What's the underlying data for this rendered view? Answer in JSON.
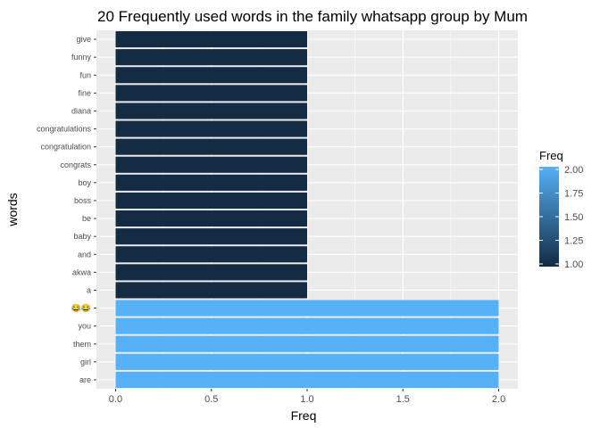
{
  "chart_data": {
    "type": "bar",
    "orientation": "horizontal",
    "title": "20 Frequently used words in the family whatsapp group by Mum",
    "xlabel": "Freq",
    "ylabel": "words",
    "categories": [
      "give",
      "funny",
      "fun",
      "fine",
      "diana",
      "congratulations",
      "congratulation",
      "congrats",
      "boy",
      "boss",
      "be",
      "baby",
      "and",
      "akwa",
      "a",
      "😂😂",
      "you",
      "them",
      "girl",
      "are"
    ],
    "values": [
      1,
      1,
      1,
      1,
      1,
      1,
      1,
      1,
      1,
      1,
      1,
      1,
      1,
      1,
      1,
      2,
      2,
      2,
      2,
      2
    ],
    "xlim": [
      0,
      2
    ],
    "xticks": [
      "0.0",
      "0.5",
      "1.0",
      "1.5",
      "2.0"
    ],
    "grid": true,
    "legend": {
      "title": "Freq",
      "placement": "right",
      "ticks": [
        "2.00",
        "1.75",
        "1.50",
        "1.25",
        "1.00"
      ],
      "tick_values": [
        2.0,
        1.75,
        1.5,
        1.25,
        1.0
      ],
      "color_low": "#132B43",
      "color_high": "#56B1F7"
    },
    "panel_background": "#EBEBEB"
  }
}
